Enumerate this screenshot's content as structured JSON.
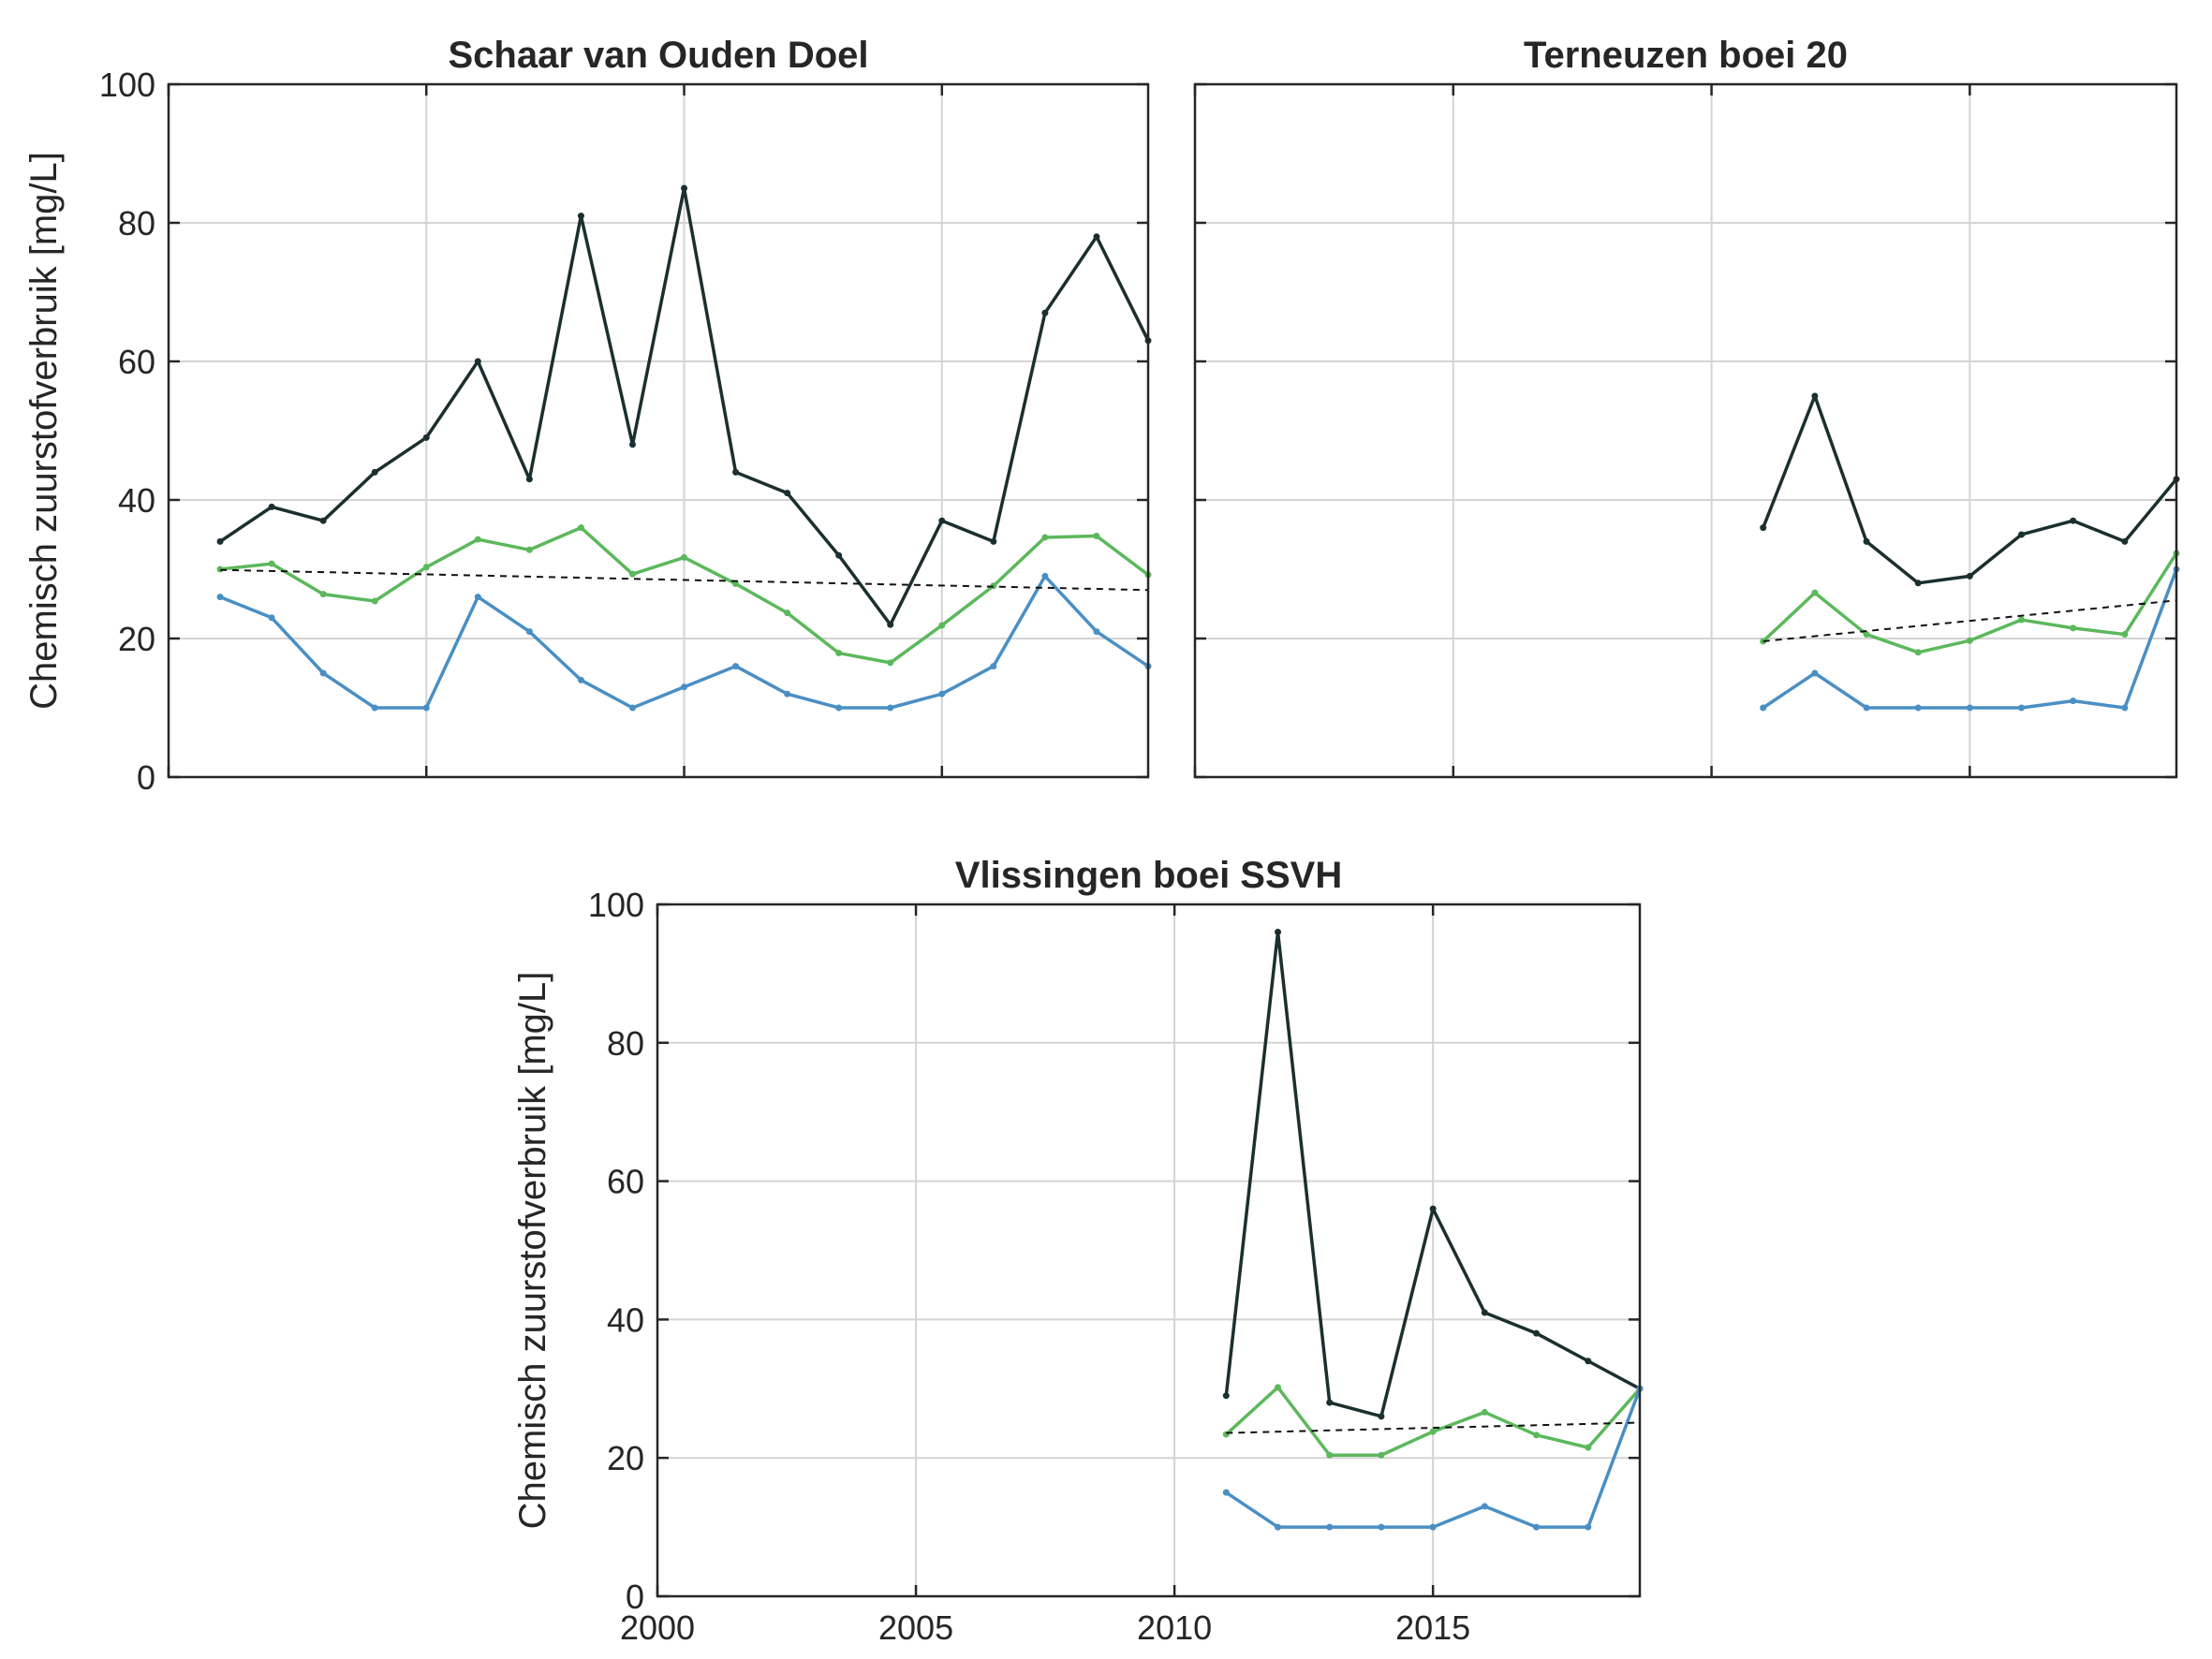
{
  "figure": {
    "colors": {
      "max": "#1b2f2f",
      "mean": "#5cb85c",
      "min": "#4a8fc4",
      "trend": "#111111",
      "grid": "#d4d4d4",
      "axis": "#262626"
    }
  },
  "chart_data": [
    {
      "type": "line",
      "title": "Schaar van Ouden Doel",
      "ylabel": "Chemisch zuurstofverbruik [mg/L]",
      "xlim": [
        2000,
        2019
      ],
      "ylim": [
        0,
        100
      ],
      "xticks": [
        2000,
        2005,
        2010,
        2015
      ],
      "yticks": [
        0,
        20,
        40,
        60,
        80,
        100
      ],
      "yticklabels": [
        "0",
        "20",
        "40",
        "60",
        "80",
        "100"
      ],
      "show_xtick_labels": false,
      "show_ytick_labels": true,
      "grid": true,
      "series": [
        {
          "role": "max",
          "x": [
            2001,
            2002,
            2003,
            2004,
            2005,
            2006,
            2007,
            2008,
            2009,
            2010,
            2011,
            2012,
            2013,
            2014,
            2015,
            2016,
            2017,
            2018,
            2019
          ],
          "y": [
            34,
            39,
            37,
            44,
            49,
            60,
            43,
            81,
            48,
            85,
            44,
            41,
            32,
            22,
            37,
            34,
            67,
            78,
            63
          ]
        },
        {
          "role": "mean",
          "x": [
            2001,
            2002,
            2003,
            2004,
            2005,
            2006,
            2007,
            2008,
            2009,
            2010,
            2011,
            2012,
            2013,
            2014,
            2015,
            2016,
            2017,
            2018,
            2019
          ],
          "y": [
            30,
            30.8,
            26.4,
            25.4,
            30.3,
            34.3,
            32.8,
            36,
            29.3,
            31.7,
            27.9,
            23.7,
            17.9,
            16.5,
            21.9,
            27.6,
            34.6,
            34.8,
            29.2
          ]
        },
        {
          "role": "min",
          "x": [
            2001,
            2002,
            2003,
            2004,
            2005,
            2006,
            2007,
            2008,
            2009,
            2010,
            2011,
            2012,
            2013,
            2014,
            2015,
            2016,
            2017,
            2018,
            2019
          ],
          "y": [
            26,
            23,
            15,
            10,
            10,
            26,
            21,
            14,
            10,
            13,
            16,
            12,
            10,
            10,
            12,
            16,
            29,
            21,
            16
          ]
        },
        {
          "role": "trend",
          "x": [
            2001,
            2019
          ],
          "y": [
            29.9,
            27
          ]
        }
      ]
    },
    {
      "type": "line",
      "title": "Terneuzen boei 20",
      "ylabel": "",
      "xlim": [
        2000,
        2019
      ],
      "ylim": [
        0,
        100
      ],
      "xticks": [
        2000,
        2005,
        2010,
        2015
      ],
      "yticks": [
        0,
        20,
        40,
        60,
        80,
        100
      ],
      "yticklabels": [],
      "show_xtick_labels": false,
      "show_ytick_labels": false,
      "grid": true,
      "series": [
        {
          "role": "max",
          "x": [
            2011,
            2012,
            2013,
            2014,
            2015,
            2016,
            2017,
            2018,
            2019
          ],
          "y": [
            36,
            55,
            34,
            28,
            29,
            35,
            37,
            34,
            43
          ]
        },
        {
          "role": "mean",
          "x": [
            2011,
            2012,
            2013,
            2014,
            2015,
            2016,
            2017,
            2018,
            2019
          ],
          "y": [
            19.6,
            26.6,
            20.6,
            18,
            19.7,
            22.7,
            21.5,
            20.6,
            32.3
          ]
        },
        {
          "role": "min",
          "x": [
            2011,
            2012,
            2013,
            2014,
            2015,
            2016,
            2017,
            2018,
            2019
          ],
          "y": [
            10,
            15,
            10,
            10,
            10,
            10,
            11,
            10,
            30
          ]
        },
        {
          "role": "trend",
          "x": [
            2011,
            2019
          ],
          "y": [
            19.6,
            25.5
          ]
        }
      ]
    },
    {
      "type": "line",
      "title": "Vlissingen boei SSVH",
      "ylabel": "Chemisch zuurstofverbruik [mg/L]",
      "xlim": [
        2000,
        2019
      ],
      "ylim": [
        0,
        100
      ],
      "xticks": [
        2000,
        2005,
        2010,
        2015
      ],
      "xticklabels": [
        "2000",
        "2005",
        "2010",
        "2015"
      ],
      "yticks": [
        0,
        20,
        40,
        60,
        80,
        100
      ],
      "yticklabels": [
        "0",
        "20",
        "40",
        "60",
        "80",
        "100"
      ],
      "show_xtick_labels": true,
      "show_ytick_labels": true,
      "grid": true,
      "series": [
        {
          "role": "max",
          "x": [
            2011,
            2012,
            2013,
            2014,
            2015,
            2016,
            2017,
            2018,
            2019
          ],
          "y": [
            29,
            96,
            28,
            26,
            56,
            41,
            38,
            34,
            30
          ]
        },
        {
          "role": "mean",
          "x": [
            2011,
            2012,
            2013,
            2014,
            2015,
            2016,
            2017,
            2018,
            2019
          ],
          "y": [
            23.4,
            30.2,
            20.4,
            20.4,
            23.8,
            26.6,
            23.3,
            21.5,
            30
          ]
        },
        {
          "role": "min",
          "x": [
            2011,
            2012,
            2013,
            2014,
            2015,
            2016,
            2017,
            2018,
            2019
          ],
          "y": [
            15,
            10,
            10,
            10,
            10,
            13,
            10,
            10,
            30
          ]
        },
        {
          "role": "trend",
          "x": [
            2011,
            2019
          ],
          "y": [
            23.6,
            25.1
          ]
        }
      ]
    }
  ]
}
